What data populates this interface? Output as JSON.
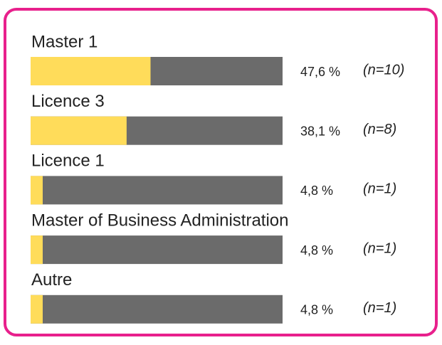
{
  "chart_data": {
    "type": "bar",
    "orientation": "horizontal",
    "categories": [
      "Master 1",
      "Licence 3",
      "Licence 1",
      "Master of Business Administration",
      "Autre"
    ],
    "values": [
      47.6,
      38.1,
      4.8,
      4.8,
      4.8
    ],
    "value_labels": [
      "47,6 %",
      "38,1 %",
      "4,8 %",
      "4,8 %",
      "4,8 %"
    ],
    "annotations": [
      "(n=10)",
      "(n=8)",
      "(n=1)",
      "(n=1)",
      "(n=1)"
    ],
    "xlim": [
      0,
      100
    ],
    "color": "#ffdc5a",
    "track_color": "#6b6b6b",
    "border_color": "#e8208c"
  }
}
